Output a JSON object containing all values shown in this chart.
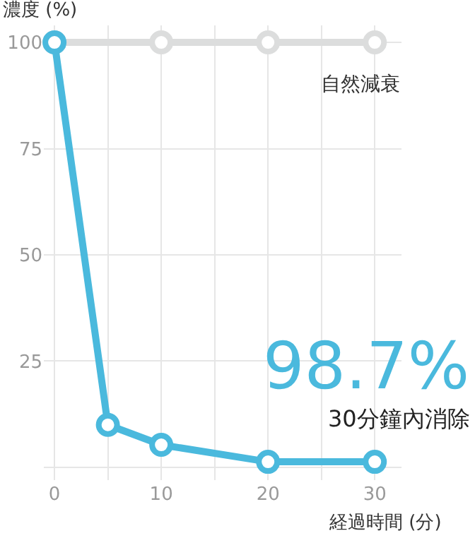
{
  "chart_data": {
    "type": "line",
    "ylabel": "濃度 (%)",
    "xlabel": "経過時間 (分)",
    "xlim": [
      -1,
      32.5
    ],
    "ylim": [
      -3,
      104
    ],
    "xticks": [
      0,
      {
        "value": 5,
        "label": null
      },
      10,
      {
        "value": 15,
        "label": null
      },
      20,
      {
        "value": 25,
        "label": null
      },
      30
    ],
    "yticks": [
      {
        "value": 0,
        "label": null
      },
      25,
      50,
      75,
      100
    ],
    "grid": true,
    "marker": "circle",
    "legend": false,
    "series": [
      {
        "name": "自然減衰",
        "color": "#dcdddd",
        "x": [
          0,
          10,
          20,
          30
        ],
        "values": [
          100,
          100,
          100,
          100
        ]
      },
      {
        "color": "#4ab9dd",
        "x": [
          0,
          5,
          10,
          20,
          30
        ],
        "values": [
          100,
          10,
          5.3,
          1.3,
          1.3
        ]
      }
    ],
    "annotations": [
      "98.7%",
      "30分鐘內消除"
    ]
  }
}
